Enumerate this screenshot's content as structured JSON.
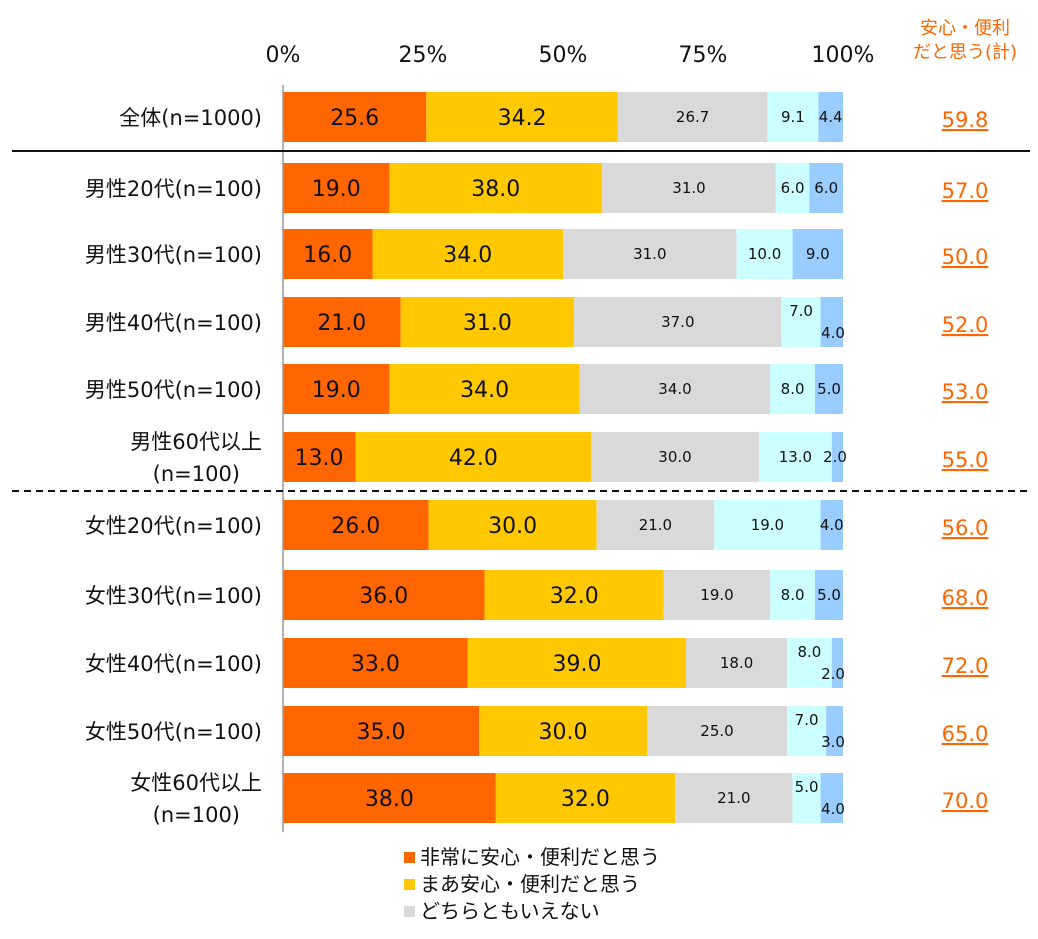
{
  "chart_data": {
    "type": "bar",
    "orientation": "horizontal",
    "stacked": true,
    "xlim": [
      0,
      100
    ],
    "x_ticks": [
      "0%",
      "25%",
      "50%",
      "75%",
      "100%"
    ],
    "categories": [
      [
        "全体(n=1000)"
      ],
      [
        "男性20代(n=100)"
      ],
      [
        "男性30代(n=100)"
      ],
      [
        "男性40代(n=100)"
      ],
      [
        "男性50代(n=100)"
      ],
      [
        "男性60代以上",
        "(n=100)"
      ],
      [
        "女性20代(n=100)"
      ],
      [
        "女性30代(n=100)"
      ],
      [
        "女性40代(n=100)"
      ],
      [
        "女性50代(n=100)"
      ],
      [
        "女性60代以上",
        "(n=100)"
      ]
    ],
    "series": [
      {
        "name": "非常に安心・便利だと思う",
        "color": "#FF6600",
        "values": [
          "25.6",
          "19.0",
          "16.0",
          "21.0",
          "19.0",
          "13.0",
          "26.0",
          "36.0",
          "33.0",
          "35.0",
          "38.0"
        ]
      },
      {
        "name": "まあ安心・便利だと思う",
        "color": "#FFC800",
        "values": [
          "34.2",
          "38.0",
          "34.0",
          "31.0",
          "34.0",
          "42.0",
          "30.0",
          "32.0",
          "39.0",
          "30.0",
          "32.0"
        ]
      },
      {
        "name": "どちらともいえない",
        "color": "#D9D9D9",
        "values": [
          "26.7",
          "31.0",
          "31.0",
          "37.0",
          "34.0",
          "30.0",
          "21.0",
          "19.0",
          "18.0",
          "25.0",
          "21.0"
        ]
      },
      {
        "name": "",
        "color": "#CCFFFF",
        "values": [
          "9.1",
          "6.0",
          "10.0",
          "7.0",
          "8.0",
          "13.0",
          "19.0",
          "8.0",
          "8.0",
          "7.0",
          "5.0"
        ]
      },
      {
        "name": "",
        "color": "#99CCFF",
        "values": [
          "4.4",
          "6.0",
          "9.0",
          "4.0",
          "5.0",
          "2.0",
          "4.0",
          "5.0",
          "2.0",
          "3.0",
          "4.0"
        ]
      }
    ],
    "totals_header": [
      "安心・便利",
      "だと思う(計)"
    ],
    "totals": [
      "59.8",
      "57.0",
      "50.0",
      "52.0",
      "53.0",
      "55.0",
      "56.0",
      "68.0",
      "72.0",
      "65.0",
      "70.0"
    ],
    "legend_position": "bottom"
  }
}
